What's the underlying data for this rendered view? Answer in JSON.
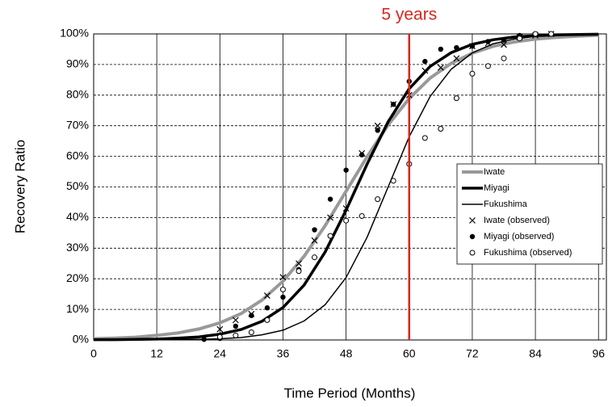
{
  "chart_data": {
    "type": "line",
    "xlabel": "Time Period (Months)",
    "ylabel": "Recovery Ratio",
    "xlim": [
      0,
      97.5
    ],
    "ylim": [
      0,
      100
    ],
    "xticks": [
      0,
      12,
      24,
      36,
      48,
      60,
      72,
      84,
      96
    ],
    "yticks": [
      {
        "value": 0,
        "label": "0%"
      },
      {
        "value": 10,
        "label": "10%"
      },
      {
        "value": 20,
        "label": "20%"
      },
      {
        "value": 30,
        "label": "30%"
      },
      {
        "value": 40,
        "label": "40%"
      },
      {
        "value": 50,
        "label": "50%"
      },
      {
        "value": 60,
        "label": "60%"
      },
      {
        "value": 70,
        "label": "70%"
      },
      {
        "value": 80,
        "label": "80%"
      },
      {
        "value": 90,
        "label": "90%"
      },
      {
        "value": 100,
        "label": "100%"
      }
    ],
    "grid": true,
    "legend": "right",
    "annotations": [
      {
        "text": "5 years",
        "x": 60,
        "color": "#d9261c"
      }
    ],
    "series": [
      {
        "name": "Iwate",
        "kind": "line",
        "color": "#999999",
        "width": 4,
        "x": [
          0,
          4,
          8,
          12,
          16,
          20,
          24,
          28,
          32,
          36,
          40,
          44,
          48,
          52,
          56,
          60,
          64,
          68,
          72,
          76,
          80,
          84,
          88,
          92,
          96
        ],
        "values": [
          0.4,
          0.6,
          0.9,
          1.5,
          2.3,
          3.6,
          5.6,
          8.6,
          13.0,
          19.2,
          27.3,
          37.3,
          48.6,
          59.9,
          70.3,
          78.9,
          85.6,
          90.4,
          93.7,
          96.0,
          97.4,
          98.3,
          98.9,
          99.3,
          99.6
        ]
      },
      {
        "name": "Miyagi",
        "kind": "line",
        "color": "#000000",
        "width": 3.5,
        "x": [
          0,
          4,
          8,
          12,
          16,
          20,
          24,
          28,
          32,
          36,
          40,
          44,
          48,
          52,
          56,
          60,
          64,
          68,
          72,
          76,
          80,
          84,
          88,
          92,
          96
        ],
        "values": [
          0.1,
          0.1,
          0.2,
          0.3,
          0.6,
          1.0,
          1.9,
          3.4,
          6.1,
          10.6,
          17.9,
          28.7,
          42.4,
          57.5,
          71.3,
          82.1,
          89.4,
          93.9,
          96.6,
          98.1,
          99.0,
          99.4,
          99.7,
          99.8,
          99.9
        ]
      },
      {
        "name": "Fukushima",
        "kind": "line",
        "color": "#000000",
        "width": 1.5,
        "x": [
          0,
          4,
          8,
          12,
          16,
          20,
          24,
          28,
          32,
          36,
          40,
          44,
          48,
          52,
          56,
          60,
          64,
          68,
          72,
          76,
          80,
          84,
          88,
          92,
          96
        ],
        "values": [
          0.0,
          0.0,
          0.0,
          0.1,
          0.1,
          0.2,
          0.4,
          0.8,
          1.7,
          3.2,
          6.2,
          11.5,
          20.4,
          33.6,
          50,
          66.4,
          79.6,
          88.5,
          93.8,
          96.8,
          98.3,
          99.2,
          99.6,
          99.8,
          99.9
        ]
      },
      {
        "name": "Iwate (observed)",
        "kind": "scatter",
        "marker": "x",
        "color": "#000000",
        "x": [
          24,
          27,
          30,
          33,
          36,
          39,
          42,
          45,
          48,
          51,
          54,
          57,
          60,
          63,
          66,
          69,
          72,
          75,
          78,
          81,
          84,
          87
        ],
        "values": [
          3.5,
          6.5,
          8.5,
          14.5,
          20.5,
          25,
          32.5,
          40,
          43,
          61,
          70,
          77,
          80,
          88,
          89,
          92,
          96,
          97,
          96.5,
          99,
          99.5,
          100
        ]
      },
      {
        "name": "Miyagi (observed)",
        "kind": "scatter",
        "marker": "dot",
        "color": "#000000",
        "x": [
          21,
          24,
          27,
          30,
          33,
          36,
          39,
          42,
          45,
          48,
          51,
          54,
          57,
          60,
          63,
          66,
          69,
          72,
          75,
          78,
          81,
          84,
          87
        ],
        "values": [
          0.2,
          0.5,
          4.5,
          8,
          10.5,
          14,
          23,
          36,
          46,
          55.5,
          60.5,
          68.5,
          77,
          84.5,
          91,
          95,
          95.5,
          96,
          97.5,
          98,
          99.5,
          100,
          100
        ]
      },
      {
        "name": "Fukushima (observed)",
        "kind": "scatter",
        "marker": "circle",
        "color": "#000000",
        "x": [
          24,
          27,
          30,
          33,
          36,
          39,
          42,
          45,
          48,
          51,
          54,
          57,
          60,
          63,
          66,
          69,
          72,
          75,
          78,
          81,
          84,
          87
        ],
        "values": [
          1,
          1.5,
          2.5,
          6.5,
          16.5,
          22.5,
          27,
          34,
          39,
          40.5,
          46,
          52,
          57.5,
          66,
          69,
          79,
          87,
          89.5,
          92,
          98.5,
          100,
          100
        ]
      }
    ]
  }
}
